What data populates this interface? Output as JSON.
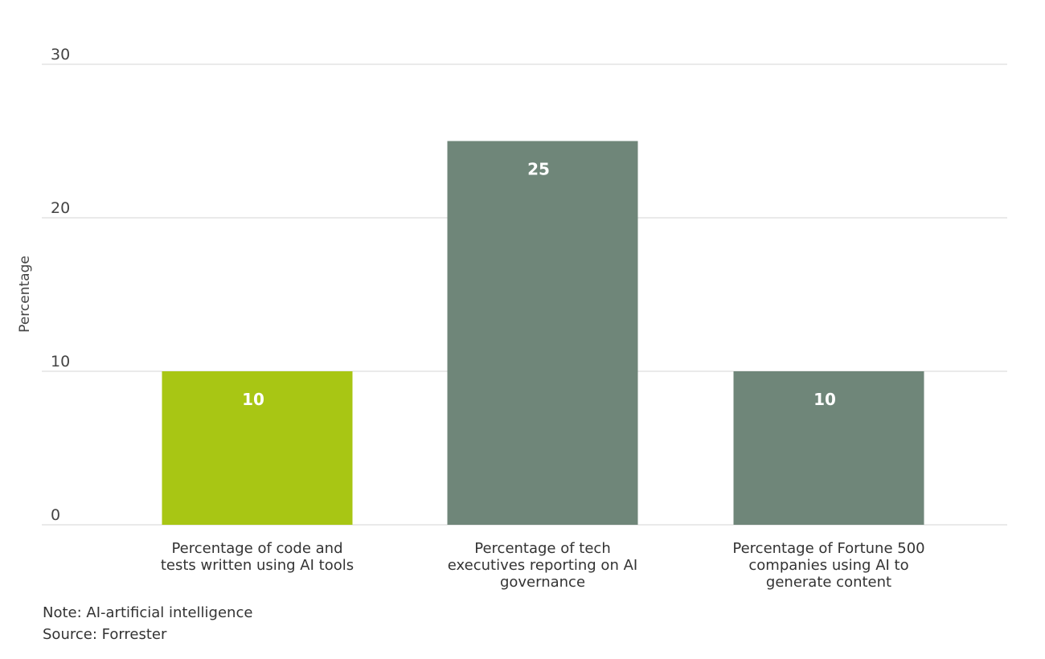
{
  "chart_data": {
    "type": "bar",
    "title": "",
    "xlabel": "",
    "ylabel": "Percentage",
    "ylim": [
      0,
      30
    ],
    "yticks": [
      0,
      10,
      20,
      30
    ],
    "grid": true,
    "categories": [
      [
        "Percentage of code and",
        "tests written using AI tools"
      ],
      [
        "Percentage of tech",
        "executives reporting on AI",
        "governance"
      ],
      [
        "Percentage of Fortune 500",
        "companies using AI to",
        "generate content"
      ]
    ],
    "values": [
      10,
      25,
      10
    ],
    "data_labels": [
      "10",
      "25",
      "10"
    ],
    "colors": [
      "#a8c614",
      "#6f8679",
      "#6f8679"
    ],
    "gridline_color": "#d4d4d4"
  },
  "footer": {
    "note": "Note: AI-artificial intelligence",
    "source": "Source: Forrester"
  }
}
